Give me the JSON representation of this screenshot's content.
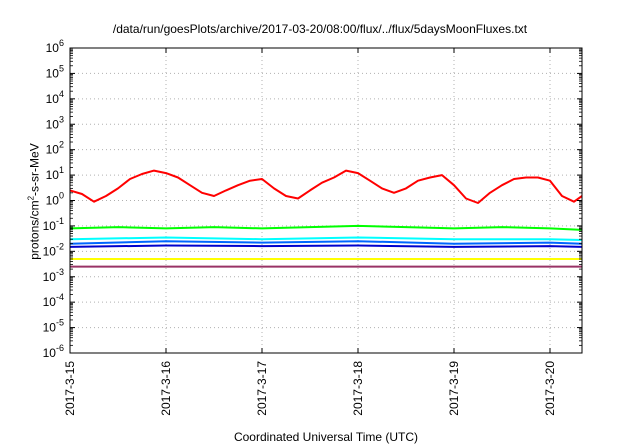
{
  "chart_data": {
    "type": "line",
    "title": "/data/run/goesPlots/archive/2017-03-20/08:00/flux/../flux/5daysMoonFluxes.txt",
    "xlabel": "Coordinated Universal Time (UTC)",
    "ylabel": {
      "prefix": "protons/cm",
      "sup": "2",
      "suffix": "-s-sr-MeV"
    },
    "y_scale": "log",
    "ylim": [
      1e-06,
      1000000.0
    ],
    "y_ticks": [
      {
        "base": "10",
        "exp": "-6",
        "value": 1e-06
      },
      {
        "base": "10",
        "exp": "-5",
        "value": 1e-05
      },
      {
        "base": "10",
        "exp": "-4",
        "value": 0.0001
      },
      {
        "base": "10",
        "exp": "-3",
        "value": 0.001
      },
      {
        "base": "10",
        "exp": "-2",
        "value": 0.01
      },
      {
        "base": "10",
        "exp": "-1",
        "value": 0.1
      },
      {
        "base": "10",
        "exp": "0",
        "value": 1
      },
      {
        "base": "10",
        "exp": "1",
        "value": 10
      },
      {
        "base": "10",
        "exp": "2",
        "value": 100
      },
      {
        "base": "10",
        "exp": "3",
        "value": 1000
      },
      {
        "base": "10",
        "exp": "4",
        "value": 10000
      },
      {
        "base": "10",
        "exp": "5",
        "value": 100000
      },
      {
        "base": "10",
        "exp": "6",
        "value": 1000000
      }
    ],
    "x_start": "2017-3-15",
    "x_end": "2017-3-20 08:00",
    "x_ticks": [
      "2017-3-15",
      "2017-3-16",
      "2017-3-17",
      "2017-3-18",
      "2017-3-19",
      "2017-3-20"
    ],
    "grid": true,
    "series": [
      {
        "color": "#ff0000",
        "points": [
          [
            "2017-3-15 00:00",
            2.5
          ],
          [
            "2017-3-15 03:00",
            1.8
          ],
          [
            "2017-3-15 06:00",
            0.9
          ],
          [
            "2017-3-15 09:00",
            1.5
          ],
          [
            "2017-3-15 12:00",
            3.0
          ],
          [
            "2017-3-15 15:00",
            7.0
          ],
          [
            "2017-3-15 18:00",
            11
          ],
          [
            "2017-3-15 21:00",
            15
          ],
          [
            "2017-3-16 00:00",
            12
          ],
          [
            "2017-3-16 03:00",
            8
          ],
          [
            "2017-3-16 06:00",
            4
          ],
          [
            "2017-3-16 09:00",
            2
          ],
          [
            "2017-3-16 12:00",
            1.5
          ],
          [
            "2017-3-16 15:00",
            2.5
          ],
          [
            "2017-3-16 18:00",
            4
          ],
          [
            "2017-3-16 21:00",
            6
          ],
          [
            "2017-3-17 00:00",
            7
          ],
          [
            "2017-3-17 03:00",
            3
          ],
          [
            "2017-3-17 06:00",
            1.5
          ],
          [
            "2017-3-17 09:00",
            1.2
          ],
          [
            "2017-3-17 12:00",
            2.5
          ],
          [
            "2017-3-17 15:00",
            5
          ],
          [
            "2017-3-17 18:00",
            8
          ],
          [
            "2017-3-17 21:00",
            15
          ],
          [
            "2017-3-18 00:00",
            12
          ],
          [
            "2017-3-18 03:00",
            6
          ],
          [
            "2017-3-18 06:00",
            3
          ],
          [
            "2017-3-18 09:00",
            2
          ],
          [
            "2017-3-18 12:00",
            3
          ],
          [
            "2017-3-18 15:00",
            6
          ],
          [
            "2017-3-18 18:00",
            8
          ],
          [
            "2017-3-18 21:00",
            10
          ],
          [
            "2017-3-19 00:00",
            4
          ],
          [
            "2017-3-19 03:00",
            1.2
          ],
          [
            "2017-3-19 06:00",
            0.8
          ],
          [
            "2017-3-19 09:00",
            2
          ],
          [
            "2017-3-19 12:00",
            4
          ],
          [
            "2017-3-19 15:00",
            7
          ],
          [
            "2017-3-19 18:00",
            8
          ],
          [
            "2017-3-19 21:00",
            8
          ],
          [
            "2017-3-20 00:00",
            6
          ],
          [
            "2017-3-20 03:00",
            1.5
          ],
          [
            "2017-3-20 06:00",
            0.9
          ],
          [
            "2017-3-20 08:00",
            1.5
          ]
        ]
      },
      {
        "color": "#00ff00",
        "points": [
          [
            "2017-3-15 00:00",
            0.08
          ],
          [
            "2017-3-15 12:00",
            0.09
          ],
          [
            "2017-3-16 00:00",
            0.08
          ],
          [
            "2017-3-16 12:00",
            0.09
          ],
          [
            "2017-3-17 00:00",
            0.08
          ],
          [
            "2017-3-17 12:00",
            0.09
          ],
          [
            "2017-3-18 00:00",
            0.1
          ],
          [
            "2017-3-18 12:00",
            0.09
          ],
          [
            "2017-3-19 00:00",
            0.08
          ],
          [
            "2017-3-19 12:00",
            0.09
          ],
          [
            "2017-3-20 00:00",
            0.08
          ],
          [
            "2017-3-20 08:00",
            0.07
          ]
        ]
      },
      {
        "color": "#00ffff",
        "points": [
          [
            "2017-3-15 00:00",
            0.03
          ],
          [
            "2017-3-16 00:00",
            0.035
          ],
          [
            "2017-3-17 00:00",
            0.03
          ],
          [
            "2017-3-18 00:00",
            0.035
          ],
          [
            "2017-3-19 00:00",
            0.03
          ],
          [
            "2017-3-20 00:00",
            0.03
          ],
          [
            "2017-3-20 08:00",
            0.028
          ]
        ]
      },
      {
        "color": "#0066ff",
        "points": [
          [
            "2017-3-15 00:00",
            0.02
          ],
          [
            "2017-3-16 00:00",
            0.025
          ],
          [
            "2017-3-17 00:00",
            0.022
          ],
          [
            "2017-3-18 00:00",
            0.025
          ],
          [
            "2017-3-19 00:00",
            0.02
          ],
          [
            "2017-3-20 00:00",
            0.022
          ],
          [
            "2017-3-20 08:00",
            0.02
          ]
        ]
      },
      {
        "color": "#0000cc",
        "points": [
          [
            "2017-3-15 00:00",
            0.015
          ],
          [
            "2017-3-16 00:00",
            0.017
          ],
          [
            "2017-3-17 00:00",
            0.016
          ],
          [
            "2017-3-18 00:00",
            0.017
          ],
          [
            "2017-3-19 00:00",
            0.015
          ],
          [
            "2017-3-20 00:00",
            0.016
          ],
          [
            "2017-3-20 08:00",
            0.015
          ]
        ]
      },
      {
        "color": "#ffff00",
        "points": [
          [
            "2017-3-15 00:00",
            0.005
          ],
          [
            "2017-3-20 08:00",
            0.005
          ]
        ]
      },
      {
        "color": "#993366",
        "points": [
          [
            "2017-3-15 00:00",
            0.0025
          ],
          [
            "2017-3-20 08:00",
            0.0025
          ]
        ]
      }
    ]
  }
}
